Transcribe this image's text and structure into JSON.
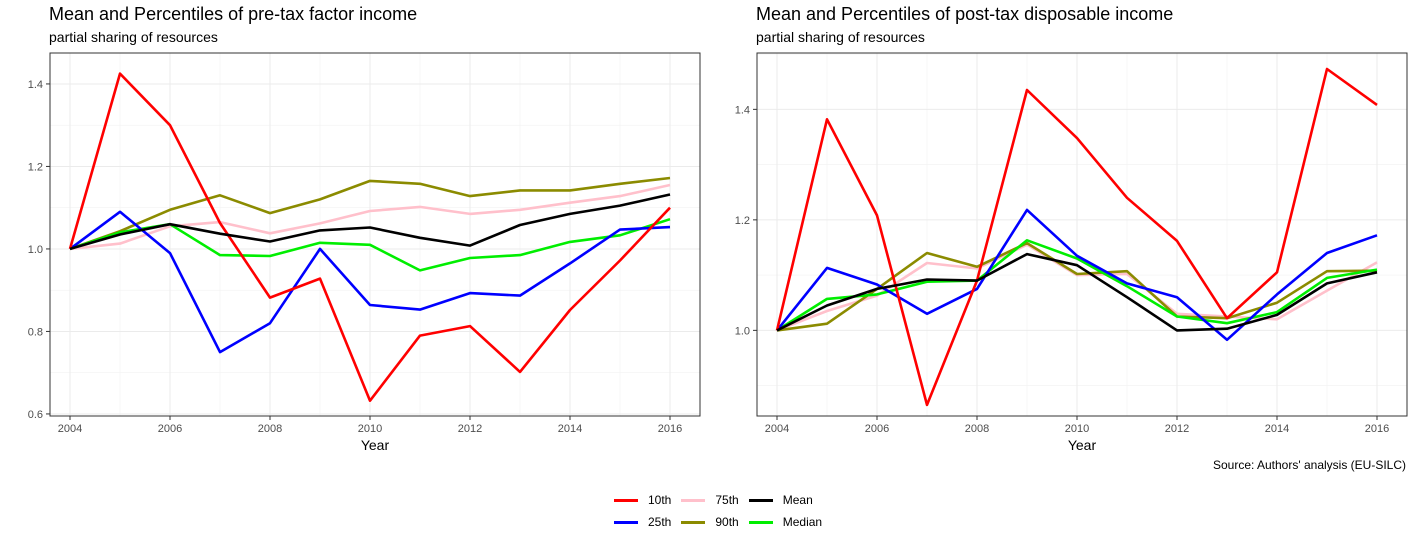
{
  "caption": "Source: Authors' analysis (EU-SILC)",
  "colors": {
    "10th": "#ff0000",
    "25th": "#0000ff",
    "75th": "#ffc0cb",
    "90th": "#8b8b00",
    "Mean": "#000000",
    "Median": "#00ee00"
  },
  "legend": {
    "items": [
      {
        "name": "10th",
        "color": "#ff0000"
      },
      {
        "name": "75th",
        "color": "#ffc0cb"
      },
      {
        "name": "Mean",
        "color": "#000000"
      },
      {
        "name": "25th",
        "color": "#0000ff"
      },
      {
        "name": "90th",
        "color": "#8b8b00"
      },
      {
        "name": "Median",
        "color": "#00ee00"
      }
    ]
  },
  "chart_data": [
    {
      "type": "line",
      "title": "Mean and Percentiles of pre-tax factor income",
      "subtitle": "partial sharing of resources",
      "xlabel": "Year",
      "ylabel": "",
      "x": [
        2004,
        2005,
        2006,
        2007,
        2008,
        2009,
        2010,
        2011,
        2012,
        2013,
        2014,
        2015,
        2016
      ],
      "xticks": [
        "2004",
        "2006",
        "2008",
        "2010",
        "2012",
        "2014",
        "2016"
      ],
      "yticks": [
        "0.6",
        "0.8",
        "1.0",
        "1.2",
        "1.4"
      ],
      "xlim": [
        2003.6,
        2016.6
      ],
      "ylim": [
        0.595,
        1.475
      ],
      "grid": true,
      "series": [
        {
          "name": "75th",
          "values": [
            1.0,
            1.013,
            1.055,
            1.065,
            1.038,
            1.062,
            1.092,
            1.102,
            1.085,
            1.095,
            1.112,
            1.128,
            1.155
          ]
        },
        {
          "name": "90th",
          "values": [
            1.0,
            1.043,
            1.095,
            1.13,
            1.087,
            1.12,
            1.165,
            1.158,
            1.128,
            1.142,
            1.142,
            1.158,
            1.172
          ]
        },
        {
          "name": "Median",
          "values": [
            1.0,
            1.04,
            1.06,
            0.985,
            0.983,
            1.015,
            1.01,
            0.948,
            0.978,
            0.985,
            1.017,
            1.033,
            1.072
          ]
        },
        {
          "name": "25th",
          "values": [
            1.0,
            1.09,
            0.99,
            0.75,
            0.82,
            1.0,
            0.864,
            0.853,
            0.893,
            0.887,
            0.965,
            1.047,
            1.053
          ]
        },
        {
          "name": "10th",
          "values": [
            1.0,
            1.425,
            1.3,
            1.063,
            0.882,
            0.928,
            0.632,
            0.79,
            0.813,
            0.702,
            0.852,
            0.972,
            1.1
          ]
        },
        {
          "name": "Mean",
          "values": [
            1.0,
            1.035,
            1.06,
            1.037,
            1.018,
            1.045,
            1.052,
            1.027,
            1.008,
            1.058,
            1.085,
            1.105,
            1.132
          ]
        }
      ]
    },
    {
      "type": "line",
      "title": "Mean and Percentiles of post-tax disposable income",
      "subtitle": "partial sharing of resources",
      "xlabel": "Year",
      "ylabel": "",
      "x": [
        2004,
        2005,
        2006,
        2007,
        2008,
        2009,
        2010,
        2011,
        2012,
        2013,
        2014,
        2015,
        2016
      ],
      "xticks": [
        "2004",
        "2006",
        "2008",
        "2010",
        "2012",
        "2014",
        "2016"
      ],
      "yticks": [
        "1.0",
        "1.2",
        "1.4"
      ],
      "xlim": [
        2003.6,
        2016.6
      ],
      "ylim": [
        0.845,
        1.502
      ],
      "grid": true,
      "series": [
        {
          "name": "75th",
          "values": [
            1.0,
            1.035,
            1.063,
            1.122,
            1.112,
            1.155,
            1.1,
            1.102,
            1.03,
            1.025,
            1.02,
            1.072,
            1.123
          ]
        },
        {
          "name": "90th",
          "values": [
            1.0,
            1.012,
            1.075,
            1.14,
            1.115,
            1.158,
            1.102,
            1.107,
            1.025,
            1.022,
            1.05,
            1.107,
            1.108
          ]
        },
        {
          "name": "Median",
          "values": [
            1.0,
            1.057,
            1.065,
            1.088,
            1.09,
            1.163,
            1.13,
            1.08,
            1.025,
            1.013,
            1.033,
            1.095,
            1.11
          ]
        },
        {
          "name": "25th",
          "values": [
            1.0,
            1.113,
            1.083,
            1.03,
            1.075,
            1.218,
            1.135,
            1.085,
            1.06,
            0.983,
            1.065,
            1.14,
            1.172
          ]
        },
        {
          "name": "10th",
          "values": [
            1.0,
            1.382,
            1.208,
            0.865,
            1.09,
            1.435,
            1.348,
            1.24,
            1.162,
            1.022,
            1.105,
            1.473,
            1.408
          ]
        },
        {
          "name": "Mean",
          "values": [
            1.0,
            1.045,
            1.075,
            1.092,
            1.09,
            1.138,
            1.118,
            1.06,
            1.0,
            1.003,
            1.028,
            1.085,
            1.105
          ]
        }
      ]
    }
  ]
}
